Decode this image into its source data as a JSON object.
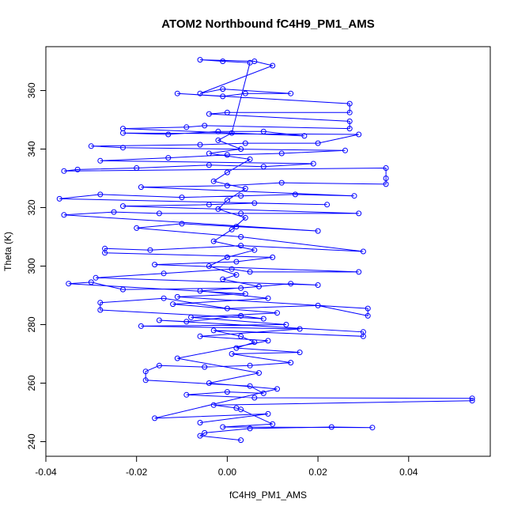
{
  "chart_data": {
    "type": "scatter",
    "title": "ATOM2 Northbound fC4H9_PM1_AMS",
    "xlabel": "fC4H9_PM1_AMS",
    "ylabel": "Theta (K)",
    "xlim": [
      -0.04,
      0.058
    ],
    "ylim": [
      235,
      375
    ],
    "xticks": [
      -0.04,
      -0.02,
      0.0,
      0.02,
      0.04
    ],
    "xtick_labels": [
      "-0.04",
      "-0.02",
      "0.00",
      "0.02",
      "0.04"
    ],
    "yticks": [
      240,
      260,
      280,
      300,
      320,
      340,
      360
    ],
    "ytick_labels": [
      "240",
      "260",
      "280",
      "300",
      "320",
      "340",
      "360"
    ],
    "grid": false,
    "legend": "none",
    "color": "#0000ff",
    "marker": "open-circle",
    "line": true,
    "points": [
      [
        0.003,
        240.5
      ],
      [
        -0.006,
        242.0
      ],
      [
        -0.005,
        243.0
      ],
      [
        0.005,
        244.5
      ],
      [
        0.023,
        245.0
      ],
      [
        0.032,
        244.8
      ],
      [
        -0.001,
        245.0
      ],
      [
        0.01,
        246.0
      ],
      [
        0.003,
        251.0
      ],
      [
        0.002,
        251.5
      ],
      [
        -0.003,
        252.5
      ],
      [
        0.054,
        254.0
      ],
      [
        0.054,
        254.8
      ],
      [
        0.006,
        255.0
      ],
      [
        -0.009,
        256.0
      ],
      [
        0.0,
        257.0
      ],
      [
        0.008,
        256.5
      ],
      [
        0.005,
        259.0
      ],
      [
        -0.018,
        261.0
      ],
      [
        -0.018,
        264.0
      ],
      [
        -0.015,
        266.0
      ],
      [
        -0.005,
        265.5
      ],
      [
        0.005,
        266.0
      ],
      [
        0.014,
        267.0
      ],
      [
        0.001,
        270.0
      ],
      [
        0.016,
        270.5
      ],
      [
        0.002,
        272.0
      ],
      [
        0.006,
        274.0
      ],
      [
        0.003,
        276.0
      ],
      [
        -0.003,
        278.0
      ],
      [
        0.03,
        276.0
      ],
      [
        0.03,
        277.5
      ],
      [
        -0.015,
        281.5
      ],
      [
        -0.009,
        281.0
      ],
      [
        0.003,
        283.0
      ],
      [
        0.008,
        282.0
      ],
      [
        -0.028,
        285.0
      ],
      [
        -0.028,
        287.5
      ],
      [
        -0.014,
        289.0
      ],
      [
        0.0,
        285.5
      ],
      [
        0.02,
        286.5
      ],
      [
        0.031,
        283.0
      ],
      [
        0.031,
        285.5
      ],
      [
        -0.011,
        289.5
      ],
      [
        0.004,
        290.5
      ],
      [
        -0.035,
        294.0
      ],
      [
        -0.03,
        294.5
      ],
      [
        -0.023,
        292.0
      ],
      [
        0.003,
        292.5
      ],
      [
        0.014,
        294.0
      ],
      [
        0.02,
        293.5
      ],
      [
        -0.029,
        296.0
      ],
      [
        -0.014,
        297.5
      ],
      [
        0.001,
        299.0
      ],
      [
        0.005,
        298.0
      ],
      [
        0.029,
        298.0
      ],
      [
        -0.016,
        300.5
      ],
      [
        0.002,
        301.5
      ],
      [
        0.01,
        303.0
      ],
      [
        -0.027,
        304.5
      ],
      [
        -0.027,
        306.0
      ],
      [
        -0.017,
        305.5
      ],
      [
        0.003,
        307.0
      ],
      [
        0.03,
        305.0
      ],
      [
        0.003,
        310.0
      ],
      [
        -0.02,
        313.0
      ],
      [
        -0.01,
        314.5
      ],
      [
        0.002,
        313.5
      ],
      [
        0.02,
        312.0
      ],
      [
        -0.036,
        317.5
      ],
      [
        -0.025,
        318.5
      ],
      [
        -0.015,
        318.0
      ],
      [
        0.003,
        318.0
      ],
      [
        0.029,
        318.0
      ],
      [
        -0.023,
        320.5
      ],
      [
        -0.004,
        321.0
      ],
      [
        0.006,
        321.5
      ],
      [
        0.022,
        321.0
      ],
      [
        -0.037,
        323.0
      ],
      [
        -0.028,
        324.5
      ],
      [
        -0.01,
        323.5
      ],
      [
        0.003,
        324.0
      ],
      [
        0.015,
        324.5
      ],
      [
        0.028,
        324.0
      ],
      [
        -0.019,
        327.0
      ],
      [
        0.0,
        327.5
      ],
      [
        0.012,
        328.5
      ],
      [
        0.035,
        328.0
      ],
      [
        0.035,
        330.0
      ],
      [
        0.035,
        333.5
      ],
      [
        -0.036,
        332.5
      ],
      [
        -0.033,
        333.0
      ],
      [
        -0.02,
        333.5
      ],
      [
        -0.004,
        334.5
      ],
      [
        0.008,
        334.0
      ],
      [
        0.019,
        335.0
      ],
      [
        -0.028,
        336.0
      ],
      [
        -0.013,
        337.0
      ],
      [
        0.0,
        338.0
      ],
      [
        0.012,
        338.5
      ],
      [
        0.026,
        339.5
      ],
      [
        -0.023,
        340.5
      ],
      [
        -0.03,
        341.0
      ],
      [
        -0.006,
        341.5
      ],
      [
        0.004,
        342.0
      ],
      [
        0.02,
        342.0
      ],
      [
        0.029,
        345.0
      ],
      [
        -0.023,
        345.5
      ],
      [
        -0.013,
        345.0
      ],
      [
        -0.002,
        346.0
      ],
      [
        0.008,
        346.0
      ],
      [
        0.017,
        344.5
      ],
      [
        -0.023,
        347.0
      ],
      [
        -0.009,
        347.5
      ],
      [
        -0.005,
        348.0
      ],
      [
        0.027,
        347.0
      ],
      [
        0.027,
        349.5
      ],
      [
        -0.004,
        352.0
      ],
      [
        0.0,
        352.5
      ],
      [
        0.027,
        352.5
      ],
      [
        0.027,
        355.5
      ],
      [
        -0.011,
        359.0
      ],
      [
        -0.001,
        358.0
      ],
      [
        0.004,
        359.0
      ],
      [
        0.014,
        359.0
      ],
      [
        -0.001,
        360.5
      ],
      [
        -0.006,
        359.0
      ],
      [
        0.01,
        368.5
      ],
      [
        0.006,
        370.0
      ],
      [
        -0.006,
        370.5
      ],
      [
        -0.001,
        370.0
      ],
      [
        0.005,
        369.5
      ],
      [
        0.001,
        345.5
      ],
      [
        -0.002,
        343.0
      ],
      [
        0.003,
        340.0
      ],
      [
        -0.004,
        338.5
      ],
      [
        0.005,
        336.5
      ],
      [
        0.0,
        332.0
      ],
      [
        -0.003,
        329.0
      ],
      [
        0.004,
        326.5
      ],
      [
        0.0,
        322.5
      ],
      [
        -0.002,
        319.5
      ],
      [
        0.004,
        316.5
      ],
      [
        0.001,
        312.5
      ],
      [
        -0.003,
        308.5
      ],
      [
        0.006,
        305.5
      ],
      [
        0.0,
        303.0
      ],
      [
        -0.004,
        300.0
      ],
      [
        0.002,
        297.0
      ],
      [
        -0.001,
        295.5
      ],
      [
        0.007,
        293.0
      ],
      [
        -0.006,
        291.5
      ],
      [
        0.009,
        289.0
      ],
      [
        -0.012,
        287.0
      ],
      [
        0.011,
        284.0
      ],
      [
        -0.008,
        282.5
      ],
      [
        0.013,
        280.0
      ],
      [
        -0.019,
        279.5
      ],
      [
        0.016,
        278.5
      ],
      [
        -0.006,
        276.0
      ],
      [
        0.009,
        274.5
      ],
      [
        -0.011,
        268.5
      ],
      [
        0.007,
        263.5
      ],
      [
        -0.004,
        260.0
      ],
      [
        0.011,
        258.0
      ],
      [
        -0.016,
        248.0
      ],
      [
        0.009,
        249.5
      ],
      [
        -0.006,
        246.5
      ]
    ]
  }
}
